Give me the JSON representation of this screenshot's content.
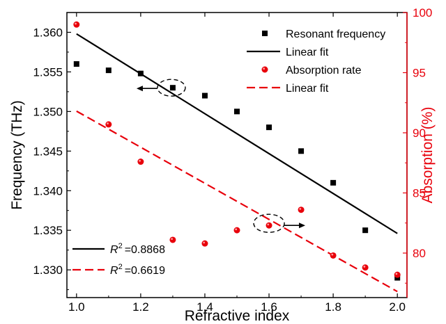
{
  "chart_data": {
    "type": "scatter",
    "xlabel": "Refractive index",
    "ylabel": "Frequency (THz)",
    "y2label": "Absorption (%)",
    "xlim": [
      0.97,
      2.03
    ],
    "ylim": [
      1.3265,
      1.3625
    ],
    "y2lim": [
      76.3,
      100
    ],
    "x_ticks": [
      "1.0",
      "1.2",
      "1.4",
      "1.6",
      "1.8",
      "2.0"
    ],
    "y_ticks": [
      "1.330",
      "1.335",
      "1.340",
      "1.345",
      "1.350",
      "1.355",
      "1.360"
    ],
    "y2_ticks": [
      "80",
      "85",
      "90",
      "95",
      "100"
    ],
    "colors": {
      "frequency": "#000000",
      "absorption": "#e8000b",
      "axis_right": "#e8000b"
    },
    "series": [
      {
        "name": "Resonant frequency",
        "axis": "left",
        "marker": "square",
        "x": [
          1.0,
          1.1,
          1.2,
          1.3,
          1.4,
          1.5,
          1.6,
          1.7,
          1.8,
          1.9,
          2.0
        ],
        "y": [
          1.356,
          1.3552,
          1.3548,
          1.353,
          1.352,
          1.35,
          1.348,
          1.345,
          1.341,
          1.335,
          1.329
        ]
      },
      {
        "name": "Linear fit",
        "axis": "left",
        "style": "solid",
        "x": [
          1.0,
          2.0
        ],
        "y": [
          1.3598,
          1.3346
        ]
      },
      {
        "name": "Absorption rate",
        "axis": "right",
        "marker": "circle",
        "x": [
          1.0,
          1.1,
          1.2,
          1.3,
          1.4,
          1.5,
          1.6,
          1.7,
          1.8,
          1.9,
          2.0
        ],
        "y": [
          99.0,
          90.7,
          87.6,
          81.1,
          80.8,
          81.9,
          82.3,
          83.6,
          79.8,
          78.8,
          78.2
        ]
      },
      {
        "name": "Linear fit",
        "axis": "right",
        "style": "dashed",
        "x": [
          1.0,
          2.0
        ],
        "y": [
          91.8,
          76.8
        ]
      }
    ],
    "fit_stats": [
      {
        "label": "=0.8868",
        "style": "solid",
        "color": "#000000"
      },
      {
        "label": "=0.6619",
        "style": "dashed",
        "color": "#e8000b"
      }
    ],
    "annotations": [
      {
        "type": "ellipse-arrow",
        "x": 1.3,
        "axis": "left",
        "direction": "left"
      },
      {
        "type": "ellipse-arrow",
        "x": 1.6,
        "axis": "right",
        "direction": "right"
      }
    ],
    "legend": "top-right",
    "grid": false
  }
}
